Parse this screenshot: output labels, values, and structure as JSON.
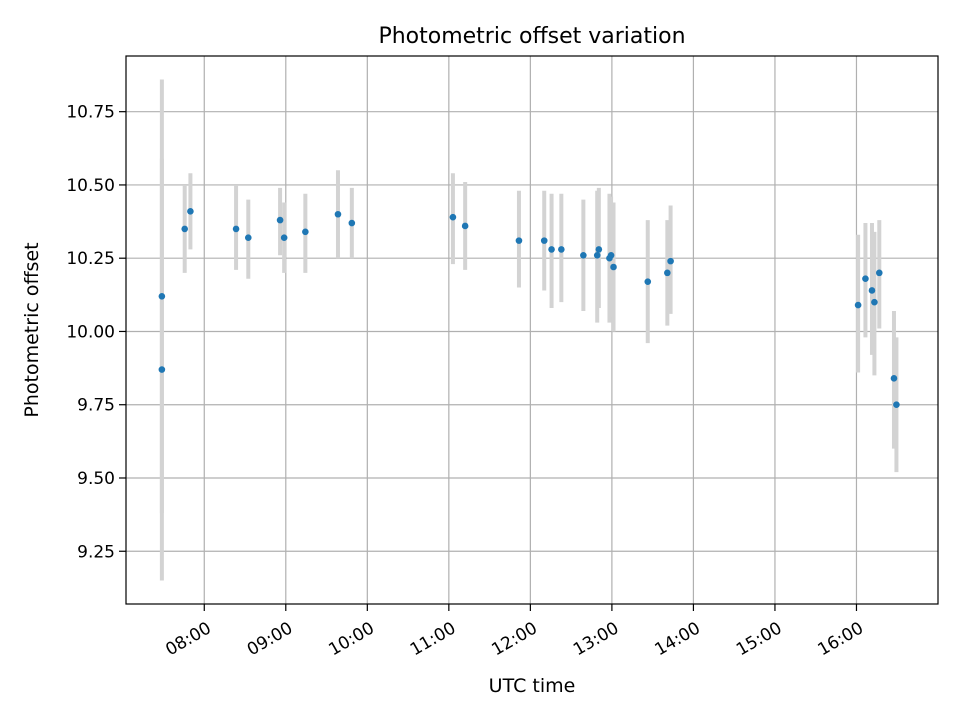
{
  "chart_data": {
    "type": "scatter",
    "title": "Photometric offset variation",
    "xlabel": "UTC time",
    "ylabel": "Photometric offset",
    "x_axis": "time (decimal hours, UTC)",
    "xlim": [
      7.04,
      17.0
    ],
    "ylim": [
      9.07,
      10.94
    ],
    "xticks": [
      8,
      9,
      10,
      11,
      12,
      13,
      14,
      15,
      16
    ],
    "xtick_labels": [
      "08:00",
      "09:00",
      "10:00",
      "11:00",
      "12:00",
      "13:00",
      "14:00",
      "15:00",
      "16:00"
    ],
    "yticks": [
      9.25,
      9.5,
      9.75,
      10.0,
      10.25,
      10.5,
      10.75
    ],
    "ytick_labels": [
      "9.25",
      "9.50",
      "9.75",
      "10.00",
      "10.25",
      "10.50",
      "10.75"
    ],
    "grid": true,
    "point_color": "#1f77b4",
    "errorbar_color": "#d3d3d3",
    "points": [
      {
        "x": 7.48,
        "y": 10.12,
        "lo": 9.38,
        "hi": 10.86
      },
      {
        "x": 7.48,
        "y": 9.87,
        "lo": 9.15,
        "hi": 10.59
      },
      {
        "x": 7.76,
        "y": 10.35,
        "lo": 10.2,
        "hi": 10.5
      },
      {
        "x": 7.83,
        "y": 10.41,
        "lo": 10.28,
        "hi": 10.54
      },
      {
        "x": 8.39,
        "y": 10.35,
        "lo": 10.21,
        "hi": 10.5
      },
      {
        "x": 8.54,
        "y": 10.32,
        "lo": 10.18,
        "hi": 10.45
      },
      {
        "x": 8.93,
        "y": 10.38,
        "lo": 10.26,
        "hi": 10.49
      },
      {
        "x": 8.98,
        "y": 10.32,
        "lo": 10.2,
        "hi": 10.44
      },
      {
        "x": 9.24,
        "y": 10.34,
        "lo": 10.2,
        "hi": 10.47
      },
      {
        "x": 9.64,
        "y": 10.4,
        "lo": 10.25,
        "hi": 10.55
      },
      {
        "x": 9.81,
        "y": 10.37,
        "lo": 10.25,
        "hi": 10.49
      },
      {
        "x": 11.05,
        "y": 10.39,
        "lo": 10.23,
        "hi": 10.54
      },
      {
        "x": 11.2,
        "y": 10.36,
        "lo": 10.21,
        "hi": 10.51
      },
      {
        "x": 11.86,
        "y": 10.31,
        "lo": 10.15,
        "hi": 10.48
      },
      {
        "x": 12.17,
        "y": 10.31,
        "lo": 10.14,
        "hi": 10.48
      },
      {
        "x": 12.26,
        "y": 10.28,
        "lo": 10.08,
        "hi": 10.47
      },
      {
        "x": 12.38,
        "y": 10.28,
        "lo": 10.1,
        "hi": 10.47
      },
      {
        "x": 12.65,
        "y": 10.26,
        "lo": 10.07,
        "hi": 10.45
      },
      {
        "x": 12.82,
        "y": 10.26,
        "lo": 10.03,
        "hi": 10.48
      },
      {
        "x": 12.84,
        "y": 10.28,
        "lo": 10.08,
        "hi": 10.49
      },
      {
        "x": 12.97,
        "y": 10.25,
        "lo": 10.03,
        "hi": 10.47
      },
      {
        "x": 12.99,
        "y": 10.26,
        "lo": 10.05,
        "hi": 10.46
      },
      {
        "x": 13.02,
        "y": 10.22,
        "lo": 10.0,
        "hi": 10.44
      },
      {
        "x": 13.44,
        "y": 10.17,
        "lo": 9.96,
        "hi": 10.38
      },
      {
        "x": 13.68,
        "y": 10.2,
        "lo": 10.02,
        "hi": 10.38
      },
      {
        "x": 13.72,
        "y": 10.24,
        "lo": 10.06,
        "hi": 10.43
      },
      {
        "x": 16.02,
        "y": 10.09,
        "lo": 9.86,
        "hi": 10.33
      },
      {
        "x": 16.11,
        "y": 10.18,
        "lo": 9.98,
        "hi": 10.37
      },
      {
        "x": 16.19,
        "y": 10.14,
        "lo": 9.92,
        "hi": 10.37
      },
      {
        "x": 16.22,
        "y": 10.1,
        "lo": 9.85,
        "hi": 10.34
      },
      {
        "x": 16.28,
        "y": 10.2,
        "lo": 10.01,
        "hi": 10.38
      },
      {
        "x": 16.46,
        "y": 9.84,
        "lo": 9.6,
        "hi": 10.07
      },
      {
        "x": 16.49,
        "y": 9.75,
        "lo": 9.52,
        "hi": 9.98
      }
    ]
  }
}
